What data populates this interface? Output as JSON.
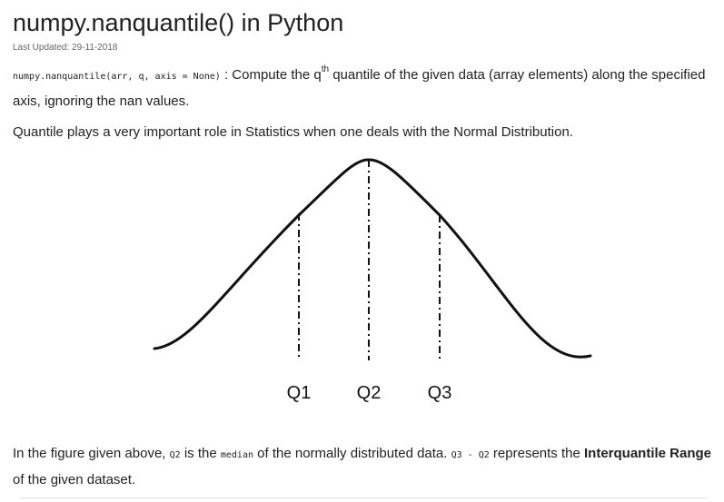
{
  "article": {
    "title": "numpy.nanquantile() in Python",
    "last_updated": "Last Updated: 29-11-2018",
    "signature": {
      "code": "numpy.nanquantile(arr, q, axis = None)",
      "colon": " : ",
      "desc_before": "Compute the q",
      "desc_sup": "th",
      "desc_after": " quantile of the given data (array elements) along the specified axis, ignoring the nan values."
    },
    "intro": "Quantile plays a very important role in Statistics when one deals with the Normal Distribution.",
    "figure": {
      "labels": [
        "Q1",
        "Q2",
        "Q3"
      ]
    },
    "explanation": {
      "t1": "In the figure given above, ",
      "c1": "Q2",
      "t2": " is the ",
      "c2": "median",
      "t3": " of the normally distributed data. ",
      "c3": "Q3 - Q2",
      "t4": " represents the ",
      "b1": "Interquantile Range",
      "t5": " of the given dataset."
    }
  }
}
